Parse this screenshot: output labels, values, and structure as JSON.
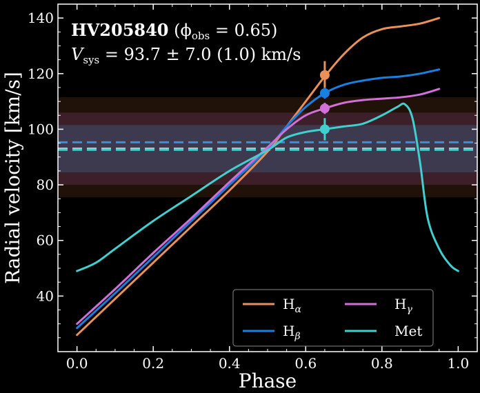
{
  "chart_data": {
    "type": "line",
    "object_name": "HV205840",
    "phase_label": "(ϕ",
    "phase_sub": "obs",
    "phase_value": " = 0.65)",
    "vsys_label": "V",
    "vsys_sub": "sys",
    "vsys_value": " = 93.7 ± 7.0 (1.0) km/s",
    "xlabel": "Phase",
    "ylabel": "Radial velocity [km/s]",
    "xlim": [
      -0.05,
      1.05
    ],
    "ylim": [
      20,
      145
    ],
    "xticks": [
      0.0,
      0.2,
      0.4,
      0.6,
      0.8,
      1.0
    ],
    "xtick_labels": [
      "0.0",
      "0.2",
      "0.4",
      "0.6",
      "0.8",
      "1.0"
    ],
    "yticks": [
      40,
      60,
      80,
      100,
      120,
      140
    ],
    "ytick_labels": [
      "40",
      "60",
      "80",
      "100",
      "120",
      "140"
    ],
    "grid": false,
    "legend_position": "lower-right",
    "bands": [
      {
        "y0": 75.5,
        "y1": 111.5,
        "color": "#ff8c42",
        "opacity": 0.13
      },
      {
        "y0": 80,
        "y1": 106,
        "color": "#cc66cc",
        "opacity": 0.16
      },
      {
        "y0": 84.5,
        "y1": 101.5,
        "color": "#4499dd",
        "opacity": 0.22
      }
    ],
    "vsys_lines": [
      {
        "y": 95.3,
        "color": "#3a8fd9"
      },
      {
        "y": 93.0,
        "color": "#c8c8c8"
      },
      {
        "y": 92.6,
        "color": "#40d0d0"
      }
    ],
    "series": [
      {
        "name": "H",
        "sub": "α",
        "color": "#e8915a",
        "x": [
          0.0,
          0.1,
          0.2,
          0.3,
          0.4,
          0.5,
          0.55,
          0.6,
          0.65,
          0.7,
          0.75,
          0.8,
          0.85,
          0.9,
          0.95
        ],
        "y": [
          26,
          39,
          52,
          65,
          78,
          92,
          101,
          110,
          119,
          127,
          133,
          136,
          137,
          138,
          140
        ]
      },
      {
        "name": "H",
        "sub": "β",
        "color": "#1a80e0",
        "x": [
          0.0,
          0.1,
          0.2,
          0.3,
          0.4,
          0.5,
          0.55,
          0.6,
          0.65,
          0.7,
          0.75,
          0.8,
          0.85,
          0.9,
          0.95
        ],
        "y": [
          28.5,
          41,
          54,
          67,
          80,
          93,
          101,
          108,
          113,
          116,
          117.5,
          118.5,
          119,
          120,
          121.5
        ]
      },
      {
        "name": "H",
        "sub": "γ",
        "color": "#d070d8",
        "x": [
          0.0,
          0.1,
          0.2,
          0.3,
          0.4,
          0.5,
          0.55,
          0.6,
          0.65,
          0.7,
          0.75,
          0.8,
          0.85,
          0.9,
          0.95
        ],
        "y": [
          30,
          42.5,
          55.5,
          68,
          81,
          93.5,
          100,
          105,
          107.5,
          109.5,
          110.5,
          111,
          111.5,
          112.5,
          114.5
        ]
      },
      {
        "name": "Met",
        "sub": "",
        "color": "#40d0d0",
        "x": [
          0.0,
          0.05,
          0.1,
          0.2,
          0.3,
          0.4,
          0.5,
          0.55,
          0.6,
          0.65,
          0.7,
          0.75,
          0.8,
          0.84,
          0.86,
          0.88,
          0.9,
          0.92,
          0.95,
          0.98,
          1.0
        ],
        "y": [
          49,
          52,
          57,
          67,
          76,
          85,
          92.5,
          97,
          99,
          100,
          101,
          102,
          105,
          108,
          109,
          104,
          88,
          68,
          57,
          51,
          49
        ]
      }
    ],
    "markers": [
      {
        "x": 0.65,
        "y": 119.5,
        "err": 5,
        "color": "#e8915a"
      },
      {
        "x": 0.65,
        "y": 113,
        "err": 2,
        "color": "#1a80e0"
      },
      {
        "x": 0.65,
        "y": 107.5,
        "err": 2,
        "color": "#d070d8"
      },
      {
        "x": 0.65,
        "y": 100,
        "err": 4,
        "color": "#40d0d0"
      }
    ]
  }
}
